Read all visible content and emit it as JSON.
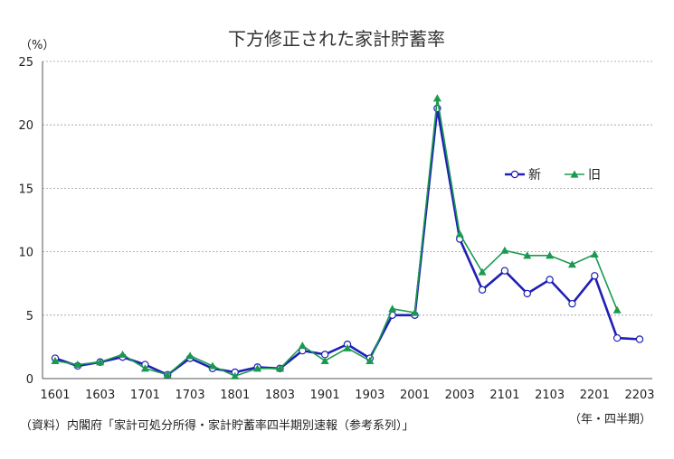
{
  "chart_data": {
    "type": "line",
    "title": "下方修正された家計貯蓄率",
    "y_unit_label": "（%）",
    "x_unit_label": "（年・四半期）",
    "source": "（資料）内閣府「家計可処分所得・家計貯蓄率四半期別速報（参考系列）」",
    "x_tick_labels": [
      "1601",
      "1603",
      "1701",
      "1703",
      "1801",
      "1803",
      "1901",
      "1903",
      "2001",
      "2003",
      "2101",
      "2103",
      "2201",
      "2203"
    ],
    "x": [
      "1601",
      "1602",
      "1603",
      "1604",
      "1701",
      "1702",
      "1703",
      "1704",
      "1801",
      "1802",
      "1803",
      "1804",
      "1901",
      "1902",
      "1903",
      "1904",
      "2001",
      "2002",
      "2003",
      "2004",
      "2101",
      "2102",
      "2103",
      "2104",
      "2201",
      "2202",
      "2203"
    ],
    "y_ticks": [
      0,
      5,
      10,
      15,
      20,
      25
    ],
    "ylim": [
      0,
      25
    ],
    "grid": true,
    "legend_position": "right-middle",
    "series": [
      {
        "name": "新",
        "color": "#1f1fb4",
        "marker": "circle",
        "values": [
          1.6,
          1.0,
          1.3,
          1.7,
          1.1,
          0.3,
          1.6,
          0.8,
          0.5,
          0.9,
          0.8,
          2.2,
          1.9,
          2.7,
          1.6,
          5.0,
          5.0,
          21.3,
          11.0,
          7.0,
          8.5,
          6.7,
          7.8,
          5.9,
          8.1,
          3.2,
          3.1
        ]
      },
      {
        "name": "旧",
        "color": "#1a9a50",
        "marker": "triangle",
        "values": [
          1.4,
          1.1,
          1.3,
          1.9,
          0.8,
          0.3,
          1.8,
          1.0,
          0.2,
          0.8,
          0.8,
          2.6,
          1.4,
          2.4,
          1.4,
          5.5,
          5.2,
          22.1,
          11.4,
          8.4,
          10.1,
          9.7,
          9.7,
          9.0,
          9.8,
          5.4,
          null
        ]
      }
    ]
  }
}
